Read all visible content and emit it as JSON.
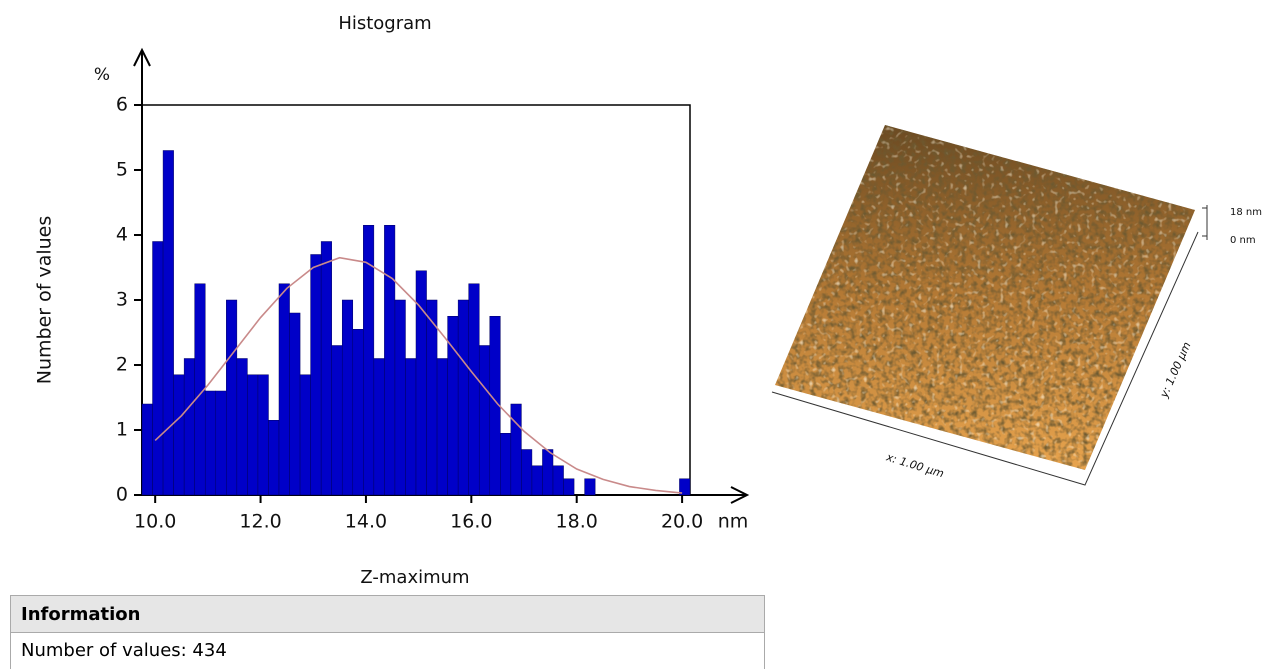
{
  "chart_data": {
    "type": "histogram",
    "title": "Histogram",
    "x_label": "Z-maximum",
    "x_unit": "nm",
    "y_label": "Number of values",
    "y_unit": "%",
    "bins": [
      9.75,
      9.95,
      10.15,
      10.35,
      10.55,
      10.75,
      10.95,
      11.15,
      11.35,
      11.55,
      11.75,
      11.95,
      12.15,
      12.35,
      12.55,
      12.75,
      12.95,
      13.15,
      13.35,
      13.55,
      13.75,
      13.95,
      14.15,
      14.35,
      14.55,
      14.75,
      14.95,
      15.15,
      15.35,
      15.55,
      15.75,
      15.95,
      16.15,
      16.35,
      16.55,
      16.75,
      16.95,
      17.15,
      17.35,
      17.55,
      17.75,
      17.95,
      18.15,
      18.35,
      18.55,
      18.75,
      18.95,
      19.15,
      19.35,
      19.55,
      19.75,
      19.95,
      20.15
    ],
    "values": [
      1.4,
      3.9,
      5.3,
      1.85,
      2.1,
      3.25,
      1.6,
      1.6,
      3.0,
      2.1,
      1.85,
      1.85,
      1.15,
      3.25,
      2.8,
      1.85,
      3.7,
      3.9,
      2.3,
      3.0,
      2.55,
      4.15,
      2.1,
      4.15,
      3.0,
      2.1,
      3.45,
      3.0,
      2.1,
      2.75,
      3.0,
      3.25,
      2.3,
      2.75,
      0.95,
      1.4,
      0.7,
      0.45,
      0.7,
      0.45,
      0.25,
      0,
      0.25,
      0,
      0,
      0,
      0,
      0,
      0,
      0,
      0,
      0.25
    ],
    "color": "#0000c8",
    "curve": {
      "color": "#c98a8a",
      "x": [
        10,
        10.5,
        11,
        11.5,
        12,
        12.5,
        13,
        13.5,
        14,
        14.5,
        15,
        15.5,
        16,
        16.5,
        17,
        17.5,
        18,
        18.5,
        19,
        19.5,
        20
      ],
      "values": [
        0.84,
        1.22,
        1.69,
        2.21,
        2.73,
        3.18,
        3.5,
        3.65,
        3.58,
        3.33,
        2.92,
        2.42,
        1.9,
        1.4,
        0.98,
        0.65,
        0.4,
        0.24,
        0.13,
        0.07,
        0.03
      ]
    },
    "xlim": [
      9.75,
      20.15
    ],
    "ylim": [
      0,
      6
    ],
    "xticks": [
      {
        "value": 10,
        "label": "10.0"
      },
      {
        "value": 12,
        "label": "12.0"
      },
      {
        "value": 14,
        "label": "14.0"
      },
      {
        "value": 16,
        "label": "16.0"
      },
      {
        "value": 18,
        "label": "18.0"
      },
      {
        "value": 20,
        "label": "20.0"
      }
    ],
    "yticks": [
      0,
      1,
      2,
      3,
      4,
      5,
      6
    ]
  },
  "afm_image": {
    "x_label": "x: 1.00 µm",
    "y_label": "y: 1.00 µm",
    "z_max_label": "18 nm",
    "z_min_label": "0 nm"
  },
  "info": {
    "title": "Information",
    "rows": [
      "Number of values: 434"
    ]
  }
}
